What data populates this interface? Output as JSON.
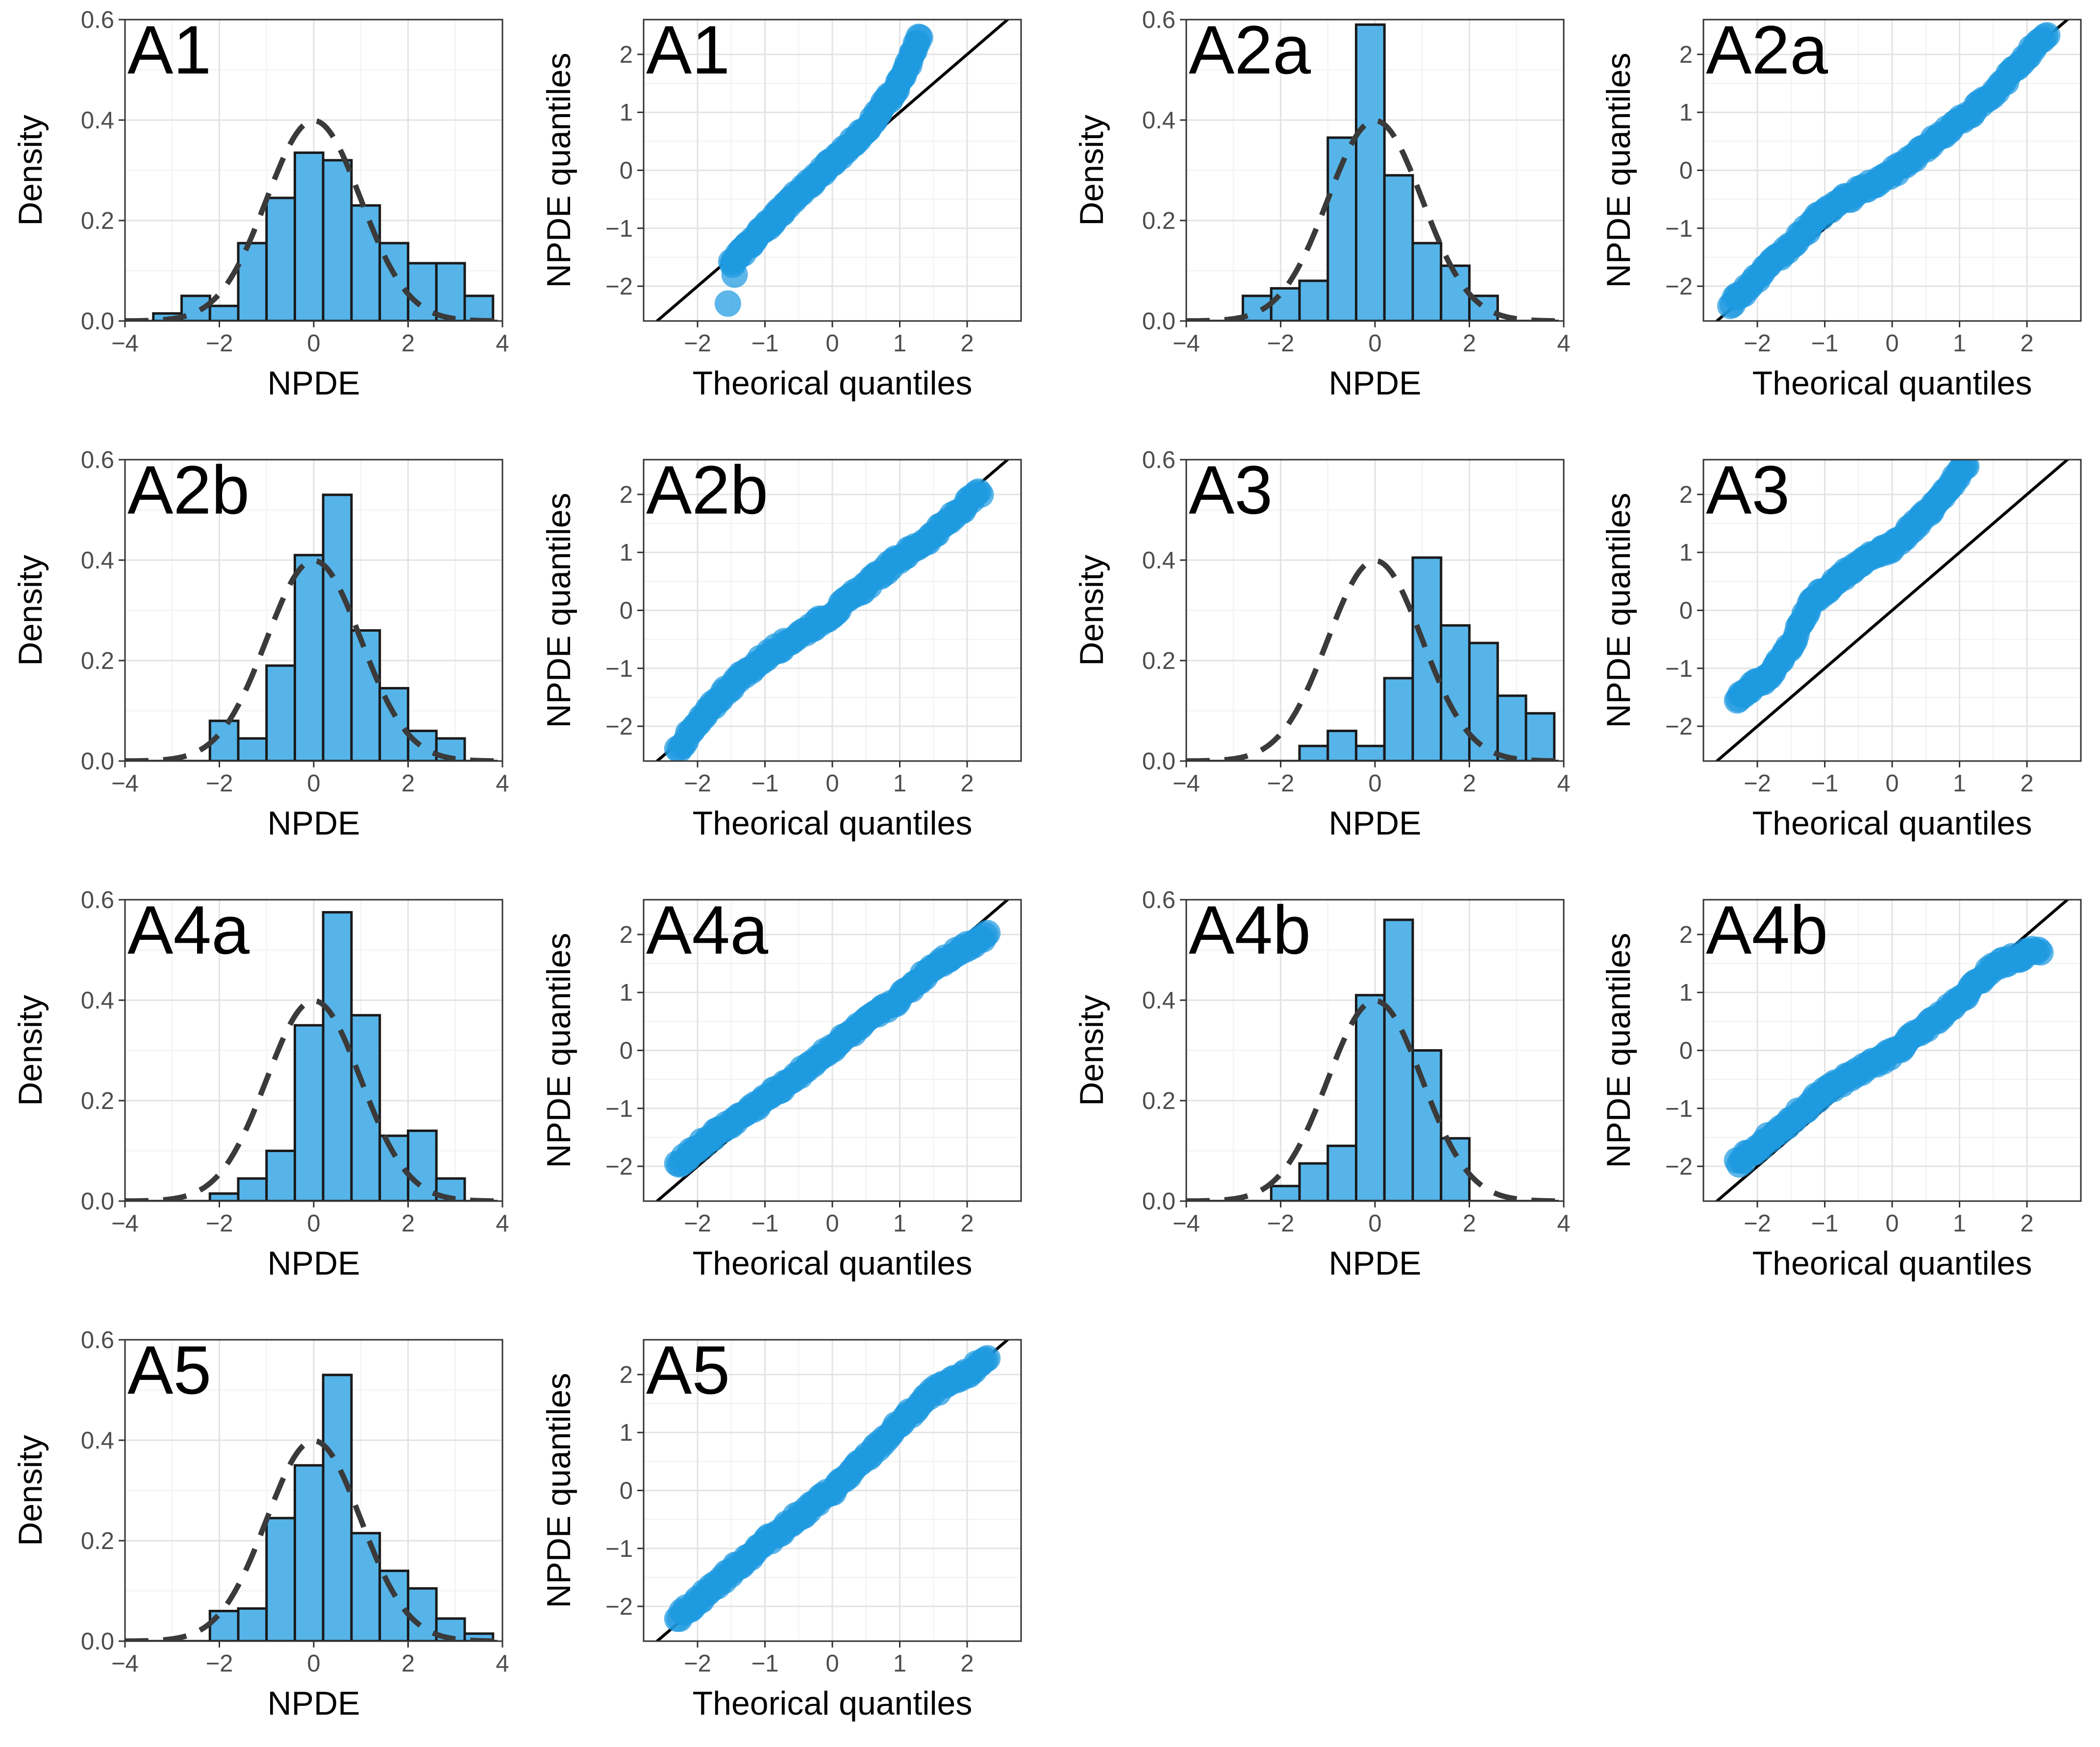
{
  "figure": {
    "colors": {
      "bar_fill": "#56B4E9",
      "point_fill": "#1E9AE0",
      "curve": "#3a3a3a",
      "line": "#000000"
    }
  },
  "chart_data": [
    {
      "type": "bar",
      "panel": "A1",
      "xlabel": "NPDE",
      "ylabel": "Density",
      "xlim": [
        -4,
        4
      ],
      "ylim": [
        0,
        0.6
      ],
      "x_ticks": [
        "-4",
        "-2",
        "0",
        "2",
        "4"
      ],
      "y_ticks": [
        "0.0",
        "0.2",
        "0.4",
        "0.6"
      ],
      "bin_width": 0.6,
      "bin_starts": [
        -4,
        -3.4,
        -2.8,
        -2.2,
        -1.6,
        -1.0,
        -0.4,
        0.2,
        0.8,
        1.4,
        2.0,
        2.6,
        3.2
      ],
      "values": [
        0.0,
        0.015,
        0.05,
        0.03,
        0.155,
        0.245,
        0.335,
        0.32,
        0.23,
        0.155,
        0.115,
        0.115,
        0.05
      ],
      "overlay": "standard normal density (dashed)"
    },
    {
      "type": "scatter",
      "panel": "A1",
      "xlabel": "Theorical quantiles",
      "ylabel": "NPDE quantiles",
      "xlim": [
        -2.8,
        2.8
      ],
      "ylim": [
        -2.6,
        2.6
      ],
      "x_ticks": [
        "-2",
        "-1",
        "0",
        "1",
        "2"
      ],
      "y_ticks": [
        "-2",
        "-1",
        "0",
        "1",
        "2"
      ],
      "qq": {
        "x_min": -1.5,
        "x_max": 1.3,
        "anchors": [
          [
            -1.5,
            -1.6
          ],
          [
            -1.0,
            -1.0
          ],
          [
            -0.5,
            -0.4
          ],
          [
            0.0,
            0.15
          ],
          [
            0.5,
            0.7
          ],
          [
            1.0,
            1.5
          ],
          [
            1.3,
            2.3
          ]
        ],
        "outliers": [
          [
            -1.55,
            -2.3
          ],
          [
            -1.45,
            -1.8
          ]
        ]
      },
      "reference_line": "y = x"
    },
    {
      "type": "bar",
      "panel": "A2a",
      "xlabel": "NPDE",
      "ylabel": "Density",
      "xlim": [
        -4,
        4
      ],
      "ylim": [
        0,
        0.6
      ],
      "x_ticks": [
        "-4",
        "-2",
        "0",
        "2",
        "4"
      ],
      "y_ticks": [
        "0.0",
        "0.2",
        "0.4",
        "0.6"
      ],
      "bin_width": 0.6,
      "bin_starts": [
        -4,
        -3.4,
        -2.8,
        -2.2,
        -1.6,
        -1.0,
        -0.4,
        0.2,
        0.8,
        1.4,
        2.0,
        2.6,
        3.2
      ],
      "values": [
        0.0,
        0.0,
        0.05,
        0.065,
        0.08,
        0.365,
        0.59,
        0.29,
        0.155,
        0.11,
        0.05,
        0.0,
        0.0
      ],
      "overlay": "standard normal density (dashed)"
    },
    {
      "type": "scatter",
      "panel": "A2a",
      "xlabel": "Theorical quantiles",
      "ylabel": "NPDE quantiles",
      "xlim": [
        -2.8,
        2.8
      ],
      "ylim": [
        -2.6,
        2.6
      ],
      "x_ticks": [
        "-2",
        "-1",
        "0",
        "1",
        "2"
      ],
      "y_ticks": [
        "-2",
        "-1",
        "0",
        "1",
        "2"
      ],
      "qq": {
        "x_min": -2.4,
        "x_max": 2.3,
        "anchors": [
          [
            -2.4,
            -2.3
          ],
          [
            -1.5,
            -1.3
          ],
          [
            -1.0,
            -0.7
          ],
          [
            0.0,
            -0.05
          ],
          [
            1.0,
            0.85
          ],
          [
            1.5,
            1.3
          ],
          [
            2.0,
            2.0
          ],
          [
            2.3,
            2.3
          ]
        ],
        "outliers": []
      },
      "reference_line": "y = x"
    },
    {
      "type": "bar",
      "panel": "A2b",
      "xlabel": "NPDE",
      "ylabel": "Density",
      "xlim": [
        -4,
        4
      ],
      "ylim": [
        0,
        0.6
      ],
      "x_ticks": [
        "-4",
        "-2",
        "0",
        "2",
        "4"
      ],
      "y_ticks": [
        "0.0",
        "0.2",
        "0.4",
        "0.6"
      ],
      "bin_width": 0.6,
      "bin_starts": [
        -4,
        -3.4,
        -2.8,
        -2.2,
        -1.6,
        -1.0,
        -0.4,
        0.2,
        0.8,
        1.4,
        2.0,
        2.6,
        3.2
      ],
      "values": [
        0.0,
        0.0,
        0.0,
        0.08,
        0.045,
        0.19,
        0.41,
        0.53,
        0.26,
        0.145,
        0.06,
        0.045,
        0.0
      ],
      "overlay": "standard normal density (dashed)"
    },
    {
      "type": "scatter",
      "panel": "A2b",
      "xlabel": "Theorical quantiles",
      "ylabel": "NPDE quantiles",
      "xlim": [
        -2.8,
        2.8
      ],
      "ylim": [
        -2.6,
        2.6
      ],
      "x_ticks": [
        "-2",
        "-1",
        "0",
        "1",
        "2"
      ],
      "y_ticks": [
        "-2",
        "-1",
        "0",
        "1",
        "2"
      ],
      "qq": {
        "x_min": -2.3,
        "x_max": 2.2,
        "anchors": [
          [
            -2.3,
            -2.4
          ],
          [
            -1.6,
            -1.4
          ],
          [
            -1.0,
            -0.8
          ],
          [
            0.0,
            -0.05
          ],
          [
            1.0,
            0.9
          ],
          [
            1.5,
            1.3
          ],
          [
            2.2,
            2.05
          ]
        ],
        "outliers": []
      },
      "reference_line": "y = x"
    },
    {
      "type": "bar",
      "panel": "A3",
      "xlabel": "NPDE",
      "ylabel": "Density",
      "xlim": [
        -4,
        4
      ],
      "ylim": [
        0,
        0.6
      ],
      "x_ticks": [
        "-4",
        "-2",
        "0",
        "2",
        "4"
      ],
      "y_ticks": [
        "0.0",
        "0.2",
        "0.4",
        "0.6"
      ],
      "bin_width": 0.6,
      "bin_starts": [
        -4,
        -3.4,
        -2.8,
        -2.2,
        -1.6,
        -1.0,
        -0.4,
        0.2,
        0.8,
        1.4,
        2.0,
        2.6,
        3.2
      ],
      "values": [
        0.0,
        0.0,
        0.0,
        0.0,
        0.03,
        0.06,
        0.03,
        0.165,
        0.405,
        0.27,
        0.235,
        0.13,
        0.095
      ],
      "overlay": "standard normal density (dashed)"
    },
    {
      "type": "scatter",
      "panel": "A3",
      "xlabel": "Theorical quantiles",
      "ylabel": "NPDE quantiles",
      "xlim": [
        -2.8,
        2.8
      ],
      "ylim": [
        -2.6,
        2.6
      ],
      "x_ticks": [
        "-2",
        "-1",
        "0",
        "1",
        "2"
      ],
      "y_ticks": [
        "-2",
        "-1",
        "0",
        "1",
        "2"
      ],
      "qq": {
        "x_min": -2.3,
        "x_max": 1.1,
        "anchors": [
          [
            -2.3,
            -1.5
          ],
          [
            -1.8,
            -1.1
          ],
          [
            -1.5,
            -0.6
          ],
          [
            -1.2,
            0.15
          ],
          [
            -0.5,
            0.8
          ],
          [
            0.0,
            1.1
          ],
          [
            0.5,
            1.65
          ],
          [
            1.1,
            2.5
          ]
        ],
        "outliers": []
      },
      "reference_line": "y = x"
    },
    {
      "type": "bar",
      "panel": "A4a",
      "xlabel": "NPDE",
      "ylabel": "Density",
      "xlim": [
        -4,
        4
      ],
      "ylim": [
        0,
        0.6
      ],
      "x_ticks": [
        "-4",
        "-2",
        "0",
        "2",
        "4"
      ],
      "y_ticks": [
        "0.0",
        "0.2",
        "0.4",
        "0.6"
      ],
      "bin_width": 0.6,
      "bin_starts": [
        -4,
        -3.4,
        -2.8,
        -2.2,
        -1.6,
        -1.0,
        -0.4,
        0.2,
        0.8,
        1.4,
        2.0,
        2.6,
        3.2
      ],
      "values": [
        0.0,
        0.0,
        0.0,
        0.015,
        0.045,
        0.1,
        0.35,
        0.575,
        0.37,
        0.13,
        0.14,
        0.045,
        0.0
      ],
      "overlay": "standard normal density (dashed)"
    },
    {
      "type": "scatter",
      "panel": "A4a",
      "xlabel": "Theorical quantiles",
      "ylabel": "NPDE quantiles",
      "xlim": [
        -2.8,
        2.8
      ],
      "ylim": [
        -2.6,
        2.6
      ],
      "x_ticks": [
        "-2",
        "-1",
        "0",
        "1",
        "2"
      ],
      "y_ticks": [
        "-2",
        "-1",
        "0",
        "1",
        "2"
      ],
      "qq": {
        "x_min": -2.3,
        "x_max": 2.3,
        "anchors": [
          [
            -2.3,
            -1.95
          ],
          [
            -1.8,
            -1.5
          ],
          [
            -1.0,
            -0.85
          ],
          [
            0.0,
            0.05
          ],
          [
            1.0,
            0.9
          ],
          [
            1.5,
            1.45
          ],
          [
            2.3,
            2.0
          ]
        ],
        "outliers": []
      },
      "reference_line": "y = x"
    },
    {
      "type": "bar",
      "panel": "A4b",
      "xlabel": "NPDE",
      "ylabel": "Density",
      "xlim": [
        -4,
        4
      ],
      "ylim": [
        0,
        0.6
      ],
      "x_ticks": [
        "-4",
        "-2",
        "0",
        "2",
        "4"
      ],
      "y_ticks": [
        "0.0",
        "0.2",
        "0.4",
        "0.6"
      ],
      "bin_width": 0.6,
      "bin_starts": [
        -4,
        -3.4,
        -2.8,
        -2.2,
        -1.6,
        -1.0,
        -0.4,
        0.2,
        0.8,
        1.4,
        2.0,
        2.6,
        3.2
      ],
      "values": [
        0.0,
        0.0,
        0.0,
        0.03,
        0.075,
        0.11,
        0.41,
        0.56,
        0.3,
        0.125,
        0.0,
        0.0,
        0.0
      ],
      "overlay": "standard normal density (dashed)"
    },
    {
      "type": "scatter",
      "panel": "A4b",
      "xlabel": "Theorical quantiles",
      "ylabel": "NPDE quantiles",
      "xlim": [
        -2.8,
        2.8
      ],
      "ylim": [
        -2.6,
        2.6
      ],
      "x_ticks": [
        "-2",
        "-1",
        "0",
        "1",
        "2"
      ],
      "y_ticks": [
        "-2",
        "-1",
        "0",
        "1",
        "2"
      ],
      "qq": {
        "x_min": -2.3,
        "x_max": 2.2,
        "anchors": [
          [
            -2.3,
            -1.95
          ],
          [
            -1.5,
            -1.2
          ],
          [
            -1.0,
            -0.7
          ],
          [
            0.0,
            -0.05
          ],
          [
            1.0,
            0.85
          ],
          [
            1.5,
            1.45
          ],
          [
            2.2,
            1.75
          ]
        ],
        "outliers": []
      },
      "reference_line": "y = x"
    },
    {
      "type": "bar",
      "panel": "A5",
      "xlabel": "NPDE",
      "ylabel": "Density",
      "xlim": [
        -4,
        4
      ],
      "ylim": [
        0,
        0.6
      ],
      "x_ticks": [
        "-4",
        "-2",
        "0",
        "2",
        "4"
      ],
      "y_ticks": [
        "0.0",
        "0.2",
        "0.4",
        "0.6"
      ],
      "bin_width": 0.6,
      "bin_starts": [
        -4,
        -3.4,
        -2.8,
        -2.2,
        -1.6,
        -1.0,
        -0.4,
        0.2,
        0.8,
        1.4,
        2.0,
        2.6,
        3.2
      ],
      "values": [
        0.0,
        0.0,
        0.0,
        0.06,
        0.065,
        0.245,
        0.35,
        0.53,
        0.215,
        0.14,
        0.105,
        0.045,
        0.015
      ],
      "overlay": "standard normal density (dashed)"
    },
    {
      "type": "scatter",
      "panel": "A5",
      "xlabel": "Theorical quantiles",
      "ylabel": "NPDE quantiles",
      "xlim": [
        -2.8,
        2.8
      ],
      "ylim": [
        -2.6,
        2.6
      ],
      "x_ticks": [
        "-2",
        "-1",
        "0",
        "1",
        "2"
      ],
      "y_ticks": [
        "-2",
        "-1",
        "0",
        "1",
        "2"
      ],
      "qq": {
        "x_min": -2.3,
        "x_max": 2.3,
        "anchors": [
          [
            -2.3,
            -2.2
          ],
          [
            -1.5,
            -1.4
          ],
          [
            -1.0,
            -0.9
          ],
          [
            0.0,
            0.0
          ],
          [
            0.5,
            0.55
          ],
          [
            1.0,
            1.15
          ],
          [
            1.5,
            1.7
          ],
          [
            2.0,
            2.0
          ],
          [
            2.3,
            2.3
          ]
        ],
        "outliers": []
      },
      "reference_line": "y = x"
    }
  ]
}
